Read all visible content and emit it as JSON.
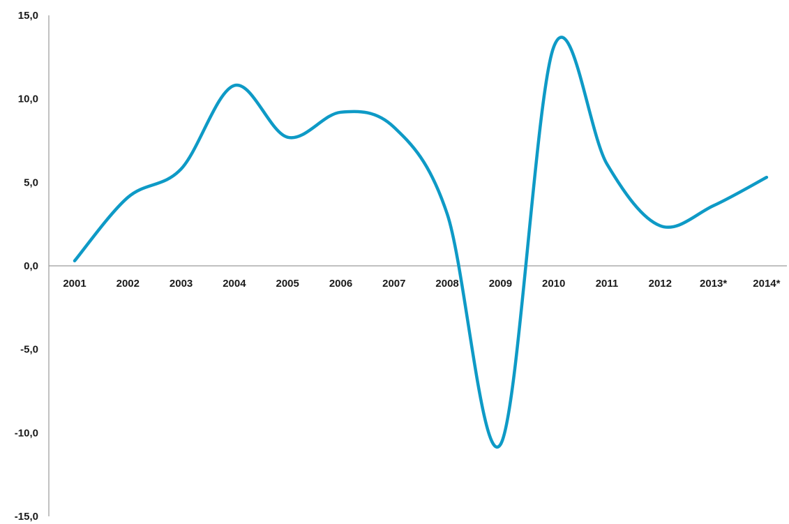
{
  "chart_data": {
    "type": "line",
    "title": "",
    "xlabel": "",
    "ylabel": "",
    "categories": [
      "2001",
      "2002",
      "2003",
      "2004",
      "2005",
      "2006",
      "2007",
      "2008",
      "2009",
      "2010",
      "2011",
      "2012",
      "2013*",
      "2014*"
    ],
    "series": [
      {
        "values": [
          0.3,
          4.1,
          5.8,
          10.8,
          7.7,
          9.2,
          8.3,
          3.1,
          -10.7,
          13.1,
          6.1,
          2.4,
          3.6,
          5.3
        ],
        "color": "#0e9ac6"
      }
    ],
    "ylim": [
      -15,
      15
    ],
    "yticks": [
      15,
      10,
      5,
      0,
      -5,
      -10,
      -15
    ],
    "ytick_labels": [
      "15,0",
      "10,0",
      "5,0",
      "0,0",
      "-5,0",
      "-10,0",
      "-15,0"
    ],
    "grid": false,
    "legend": "none",
    "smooth": true
  }
}
